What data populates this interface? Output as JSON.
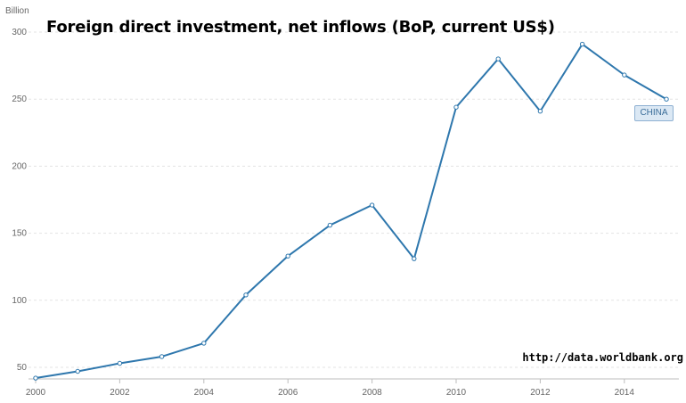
{
  "chart_data": {
    "type": "line",
    "title": "Foreign direct investment, net inflows (BoP, current US$)",
    "unit_label": "Billion",
    "source": "http://data.worldbank.org",
    "x": [
      2000,
      2001,
      2002,
      2003,
      2004,
      2005,
      2006,
      2007,
      2008,
      2009,
      2010,
      2011,
      2012,
      2013,
      2014,
      2015
    ],
    "series": [
      {
        "name": "CHINA",
        "values": [
          42,
          47,
          53,
          58,
          68,
          104,
          133,
          156,
          171,
          131,
          244,
          280,
          241,
          291,
          268,
          250
        ]
      }
    ],
    "ylim": [
      40,
      300
    ],
    "yticks": [
      50,
      100,
      150,
      200,
      250,
      300
    ],
    "xticks": [
      2000,
      2002,
      2004,
      2006,
      2008,
      2010,
      2012,
      2014
    ],
    "grid": true,
    "line_color": "#2e77ad"
  }
}
